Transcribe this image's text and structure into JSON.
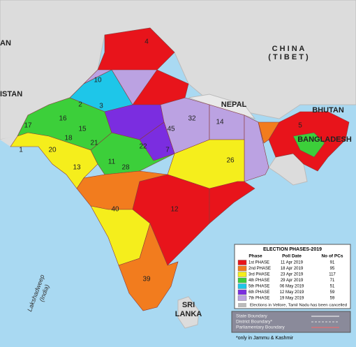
{
  "map": {
    "labels": {
      "china": "C H I N A",
      "tibet": "( T I B E T )",
      "nepal": "NEPAL",
      "bhutan": "BHUTAN",
      "bangladesh": "BANGLADESH",
      "sri": "SRI",
      "lanka": "LANKA",
      "pakistan": "ISTAN",
      "afghanistan": "AN",
      "lakshadweep": "Lakshadweep",
      "lakshadweep_sub": "(India)"
    },
    "constituency_numbers": [
      "4",
      "10",
      "3",
      "2",
      "1",
      "17",
      "16",
      "15",
      "18",
      "21",
      "13",
      "11",
      "45",
      "32",
      "14",
      "40",
      "28",
      "22",
      "20",
      "7",
      "5",
      "26",
      "12",
      "39"
    ]
  },
  "legend": {
    "title": "ELECTION PHASES-2019",
    "headers": [
      "Phase",
      "Poll Date",
      "No of PCs"
    ],
    "phases": [
      {
        "label": "1st PHASE",
        "date": "11 Apr 2019",
        "pcs": 91,
        "color": "#e8141b"
      },
      {
        "label": "2nd PHASE",
        "date": "18 Apr 2019",
        "pcs": 95,
        "color": "#f27c1e"
      },
      {
        "label": "3rd PHASE",
        "date": "23 Apr 2019",
        "pcs": 117,
        "color": "#f5ee1c"
      },
      {
        "label": "4th PHASE",
        "date": "29 Apr 2019",
        "pcs": 71,
        "color": "#3ccf3a"
      },
      {
        "label": "5th PHASE",
        "date": "06 May 2019",
        "pcs": 51,
        "color": "#1ec6e9"
      },
      {
        "label": "6th PHASE",
        "date": "12 May 2019",
        "pcs": 59,
        "color": "#7b2de0"
      },
      {
        "label": "7th PHASE",
        "date": "19 May 2019",
        "pcs": 59,
        "color": "#bba2e2"
      }
    ],
    "cancelled_note": "Elections in Vellore, Tamil Nadu has been cancelled",
    "boundaries": [
      "State Boundary",
      "District Boundary*",
      "Parliamentary Boundary"
    ],
    "footnote": "*only in Jammu & Kashmir"
  }
}
